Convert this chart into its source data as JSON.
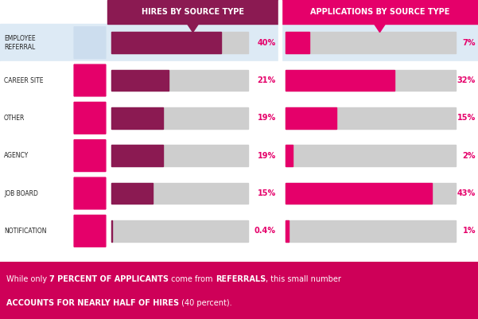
{
  "categories": [
    "EMPLOYEE\nREFERRAL",
    "CAREER SITE",
    "OTHER",
    "AGENCY",
    "JOB BOARD",
    "NOTIFICATION"
  ],
  "hires": [
    40,
    21,
    19,
    19,
    15,
    0.4
  ],
  "applications": [
    7,
    32,
    15,
    2,
    43,
    1
  ],
  "hires_labels": [
    "40%",
    "21%",
    "19%",
    "19%",
    "15%",
    "0.4%"
  ],
  "applications_labels": [
    "7%",
    "32%",
    "15%",
    "2%",
    "43%",
    "1%"
  ],
  "hires_color": "#8B1A52",
  "applications_color": "#E5006A",
  "bg_bar_color": "#CECECE",
  "header_hires_bg": "#8B1A52",
  "header_apps_bg": "#E5006A",
  "row0_bg": "#DDEAF5",
  "row_other_bg": "#FFFFFF",
  "icon_color": "#E5006A",
  "footer_bg": "#CE0058",
  "label_color": "#E5006A",
  "title_hires": "HIRES BY SOURCE TYPE",
  "title_apps": "APPLICATIONS BY SOURCE TYPE",
  "max_val": 50,
  "fig_w": 6.01,
  "fig_h": 4.01,
  "dpi": 100,
  "footer_text": [
    [
      "While only ",
      false,
      "7 PERCENT OF APPLICANTS",
      true,
      " come from ",
      false,
      "REFERRALS",
      true,
      ", this small number",
      false
    ],
    [
      "ACCOUNTS FOR NEARLY HALF OF HIRES",
      true,
      " (40 percent).",
      false
    ]
  ]
}
